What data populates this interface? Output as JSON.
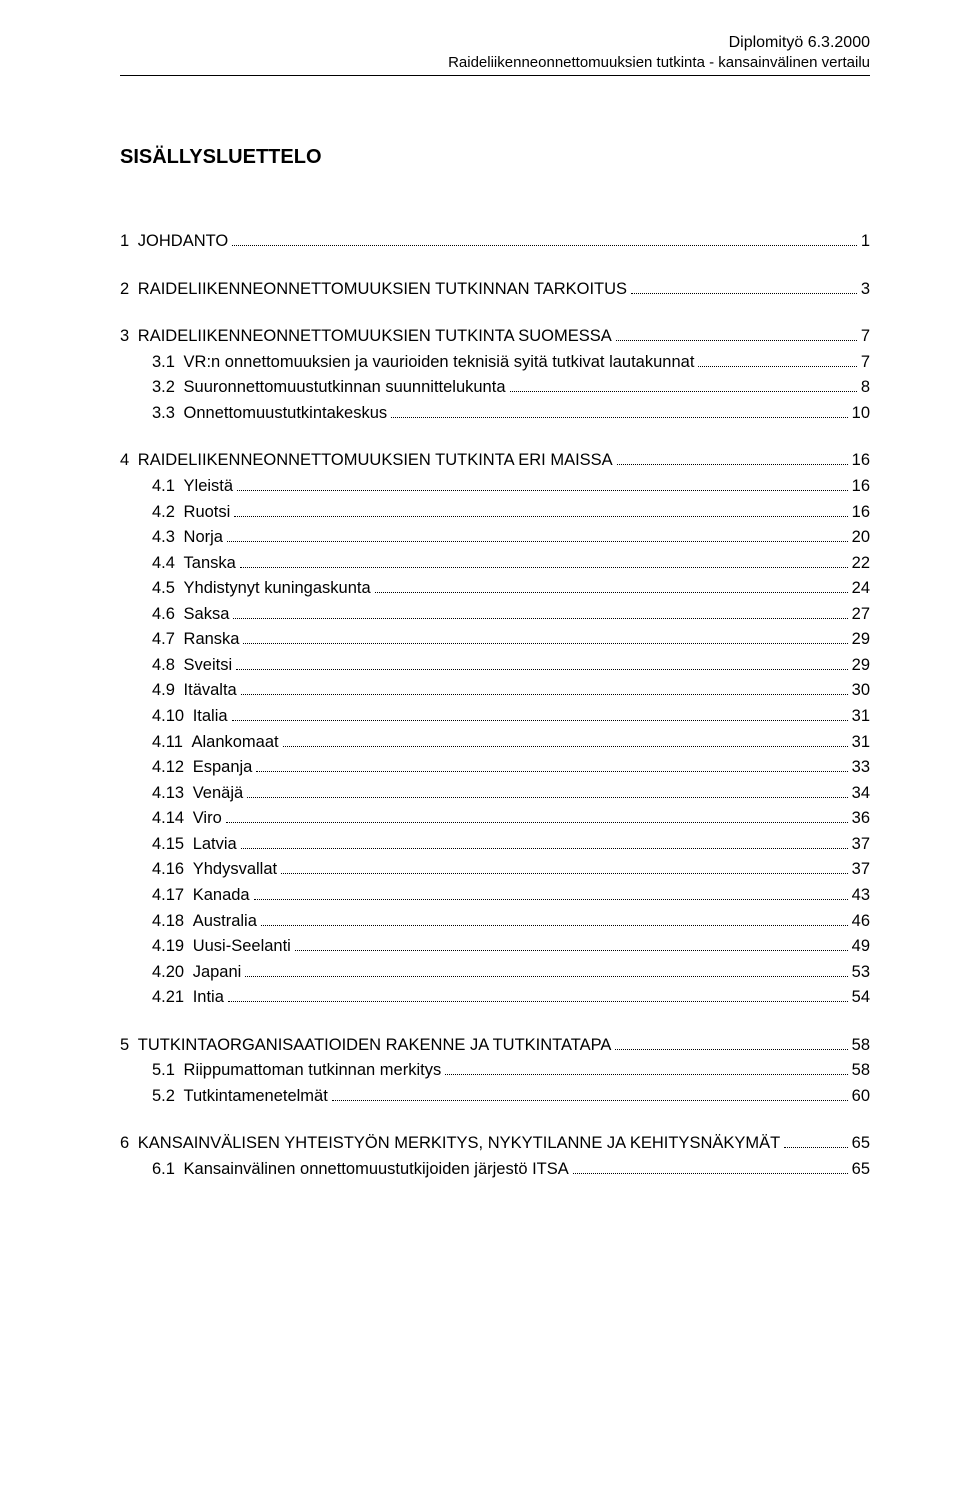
{
  "header": {
    "right_top": "Diplomityö 6.3.2000",
    "right_sub": "Raideliikenneonnettomuuksien tutkinta - kansainvälinen vertailu"
  },
  "title": "SISÄLLYSLUETTELO",
  "colors": {
    "text": "#000000",
    "background": "#ffffff",
    "rule": "#000000",
    "leader": "#000000"
  },
  "typography": {
    "body_font": "Arial",
    "body_size_pt": 12,
    "title_size_pt": 15,
    "title_weight": "bold"
  },
  "toc": [
    {
      "level": 1,
      "group_gap": true,
      "num": "1",
      "label": "JOHDANTO",
      "page": "1"
    },
    {
      "level": 1,
      "group_gap": true,
      "num": "2",
      "label": "RAIDELIIKENNEONNETTOMUUKSIEN TUTKINNAN TARKOITUS",
      "page": "3"
    },
    {
      "level": 1,
      "group_gap": true,
      "num": "3",
      "label": "RAIDELIIKENNEONNETTOMUUKSIEN TUTKINTA SUOMESSA",
      "page": "7"
    },
    {
      "level": 2,
      "group_gap": false,
      "num": "3.1",
      "label": "VR:n onnettomuuksien ja vaurioiden teknisiä syitä tutkivat lautakunnat",
      "page": "7"
    },
    {
      "level": 2,
      "group_gap": false,
      "num": "3.2",
      "label": "Suuronnettomuustutkinnan suunnittelukunta",
      "page": "8"
    },
    {
      "level": 2,
      "group_gap": false,
      "num": "3.3",
      "label": "Onnettomuustutkintakeskus",
      "page": "10"
    },
    {
      "level": 1,
      "group_gap": true,
      "num": "4",
      "label": "RAIDELIIKENNEONNETTOMUUKSIEN TUTKINTA ERI MAISSA",
      "page": "16"
    },
    {
      "level": 2,
      "group_gap": false,
      "num": "4.1",
      "label": "Yleistä",
      "page": "16"
    },
    {
      "level": 2,
      "group_gap": false,
      "num": "4.2",
      "label": "Ruotsi",
      "page": "16"
    },
    {
      "level": 2,
      "group_gap": false,
      "num": "4.3",
      "label": "Norja",
      "page": "20"
    },
    {
      "level": 2,
      "group_gap": false,
      "num": "4.4",
      "label": "Tanska",
      "page": "22"
    },
    {
      "level": 2,
      "group_gap": false,
      "num": "4.5",
      "label": "Yhdistynyt kuningaskunta",
      "page": "24"
    },
    {
      "level": 2,
      "group_gap": false,
      "num": "4.6",
      "label": "Saksa",
      "page": "27"
    },
    {
      "level": 2,
      "group_gap": false,
      "num": "4.7",
      "label": "Ranska",
      "page": "29"
    },
    {
      "level": 2,
      "group_gap": false,
      "num": "4.8",
      "label": "Sveitsi",
      "page": "29"
    },
    {
      "level": 2,
      "group_gap": false,
      "num": "4.9",
      "label": "Itävalta",
      "page": "30"
    },
    {
      "level": 2,
      "group_gap": false,
      "num": "4.10",
      "label": "Italia",
      "page": "31"
    },
    {
      "level": 2,
      "group_gap": false,
      "num": "4.11",
      "label": "Alankomaat",
      "page": "31"
    },
    {
      "level": 2,
      "group_gap": false,
      "num": "4.12",
      "label": "Espanja",
      "page": "33"
    },
    {
      "level": 2,
      "group_gap": false,
      "num": "4.13",
      "label": "Venäjä",
      "page": "34"
    },
    {
      "level": 2,
      "group_gap": false,
      "num": "4.14",
      "label": "Viro",
      "page": "36"
    },
    {
      "level": 2,
      "group_gap": false,
      "num": "4.15",
      "label": "Latvia",
      "page": "37"
    },
    {
      "level": 2,
      "group_gap": false,
      "num": "4.16",
      "label": "Yhdysvallat",
      "page": "37"
    },
    {
      "level": 2,
      "group_gap": false,
      "num": "4.17",
      "label": "Kanada",
      "page": "43"
    },
    {
      "level": 2,
      "group_gap": false,
      "num": "4.18",
      "label": "Australia",
      "page": "46"
    },
    {
      "level": 2,
      "group_gap": false,
      "num": "4.19",
      "label": "Uusi-Seelanti",
      "page": "49"
    },
    {
      "level": 2,
      "group_gap": false,
      "num": "4.20",
      "label": "Japani",
      "page": "53"
    },
    {
      "level": 2,
      "group_gap": false,
      "num": "4.21",
      "label": "Intia",
      "page": "54"
    },
    {
      "level": 1,
      "group_gap": true,
      "num": "5",
      "label": "TUTKINTAORGANISAATIOIDEN RAKENNE JA TUTKINTATAPA",
      "page": "58"
    },
    {
      "level": 2,
      "group_gap": false,
      "num": "5.1",
      "label": "Riippumattoman tutkinnan merkitys",
      "page": "58"
    },
    {
      "level": 2,
      "group_gap": false,
      "num": "5.2",
      "label": "Tutkintamenetelmät",
      "page": "60"
    },
    {
      "level": 1,
      "group_gap": true,
      "num": "6",
      "label": "KANSAINVÄLISEN YHTEISTYÖN MERKITYS, NYKYTILANNE JA KEHITYSNÄKYMÄT",
      "page": "65"
    },
    {
      "level": 2,
      "group_gap": false,
      "num": "6.1",
      "label": "Kansainvälinen onnettomuustutkijoiden järjestö ITSA",
      "page": "65"
    }
  ]
}
